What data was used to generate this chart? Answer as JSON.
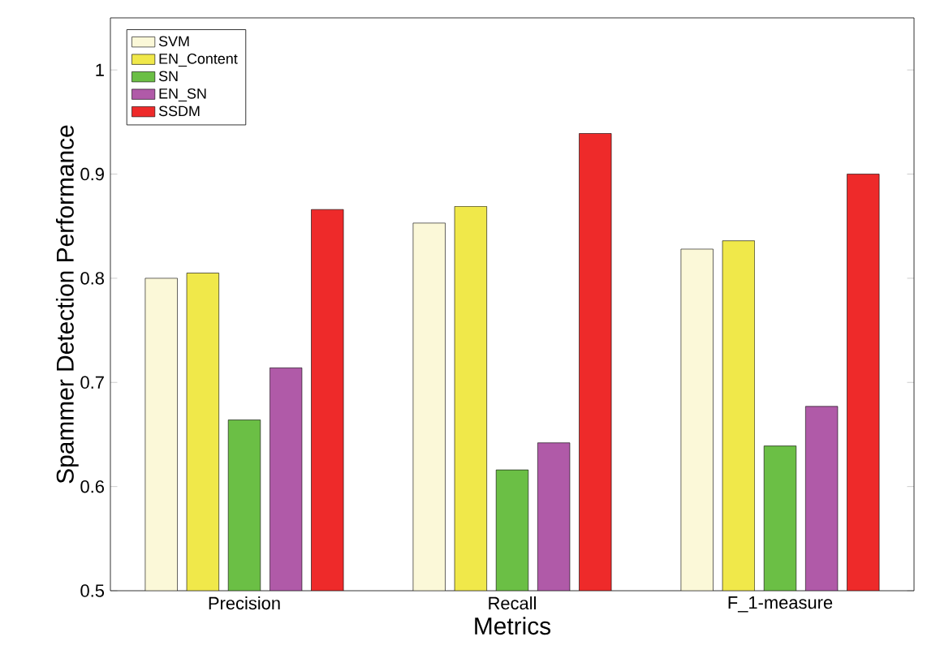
{
  "chart_data": {
    "type": "bar",
    "xlabel": "Metrics",
    "ylabel": "Spammer Detection Performance",
    "categories": [
      "Precision",
      "Recall",
      "F_1-measure"
    ],
    "series": [
      {
        "name": "SVM",
        "color": "#fbf8d8",
        "values": [
          0.8,
          0.853,
          0.828
        ]
      },
      {
        "name": "EN_Content",
        "color": "#f0e84a",
        "values": [
          0.805,
          0.869,
          0.836
        ]
      },
      {
        "name": "SN",
        "color": "#6bbf45",
        "values": [
          0.664,
          0.616,
          0.639
        ]
      },
      {
        "name": "EN_SN",
        "color": "#b05aa8",
        "values": [
          0.714,
          0.642,
          0.677
        ]
      },
      {
        "name": "SSDM",
        "color": "#ee2a2a",
        "values": [
          0.866,
          0.939,
          0.9
        ]
      }
    ],
    "ylim": [
      0.5,
      1.05
    ],
    "yticks": [
      0.5,
      0.6,
      0.7,
      0.8,
      0.9,
      1
    ],
    "grid": false,
    "legend": "top left"
  }
}
